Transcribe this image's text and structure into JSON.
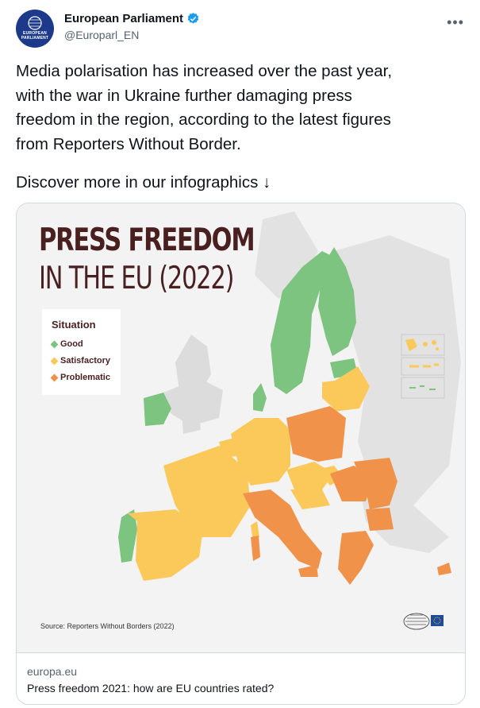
{
  "author": {
    "name": "European Parliament",
    "handle": "@Europarl_EN",
    "verified": true,
    "avatar_text": "EUROPEAN PARLIAMENT"
  },
  "tweet": {
    "text": "Media polarisation has increased over the past year,\nwith the war in Ukraine further damaging press\nfreedom in the region, according to the latest figures\nfrom Reporters Without Border.",
    "discover": "Discover more in our infographics  ↓"
  },
  "infographic": {
    "title": "PRESS FREEDOM",
    "subtitle": "IN THE EU (2022)",
    "legend_title": "Situation",
    "legend": [
      {
        "label": "Good",
        "color": "#7cc47f"
      },
      {
        "label": "Satisfactory",
        "color": "#fbc95a"
      },
      {
        "label": "Problematic",
        "color": "#f0924a"
      }
    ],
    "source": "Source: Reporters Without Borders (2022)",
    "colors": {
      "good": "#7cc47f",
      "satisfactory": "#fbc95a",
      "problematic": "#f0924a",
      "nonEU": "#dcdcdc",
      "background": "#f3f3f3"
    }
  },
  "link_card": {
    "domain": "europa.eu",
    "title": "Press freedom 2021: how are EU countries rated?"
  },
  "icons": {
    "verified": "verified-badge-icon",
    "more": "more-options-icon"
  }
}
